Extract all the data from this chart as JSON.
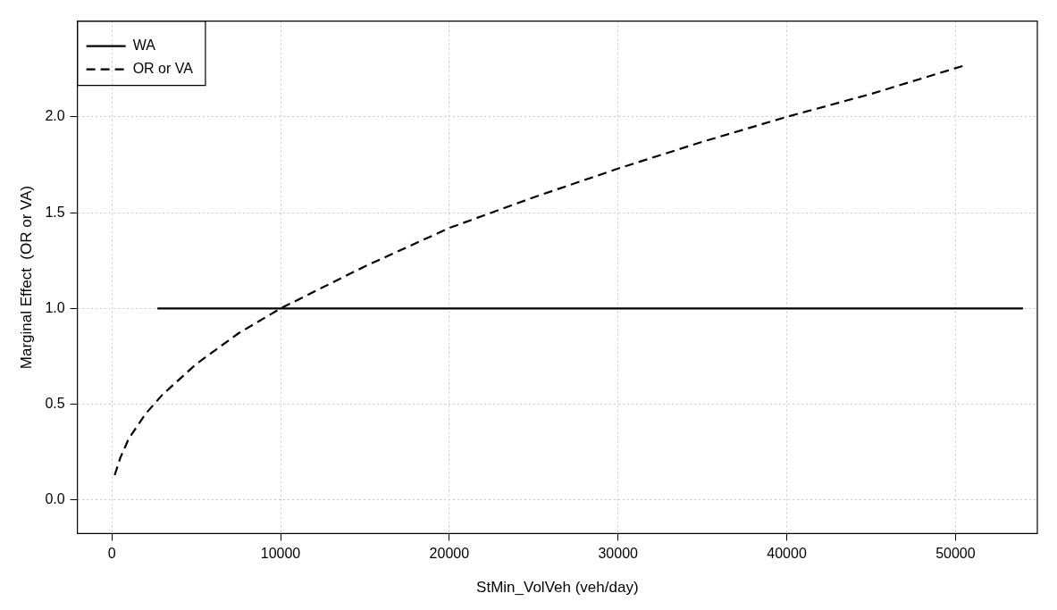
{
  "chart_data": {
    "type": "line",
    "xlabel": "StMin_VolVeh (veh/day)",
    "ylabel": "Marginal Effect  (OR or VA)",
    "xlim": [
      -2040,
      54850
    ],
    "ylim": [
      -0.175,
      2.5
    ],
    "xticks": [
      0,
      10000,
      20000,
      30000,
      40000,
      50000
    ],
    "yticks": [
      {
        "value": 0,
        "label": "0.0"
      },
      {
        "value": 0.5,
        "label": "0.5"
      },
      {
        "value": 1,
        "label": "1.0"
      },
      {
        "value": 1.5,
        "label": "1.5"
      },
      {
        "value": 2,
        "label": "2.0"
      }
    ],
    "grid": true,
    "legend": "top left",
    "marker": "none",
    "series": [
      {
        "name": "WA",
        "color": "#000000",
        "line_style": "solid",
        "x": [
          2700,
          54000
        ],
        "values": [
          1.0,
          1.0
        ]
      },
      {
        "name": "OR or VA",
        "color": "#000000",
        "line_style": "dashed",
        "x": [
          170,
          500,
          1000,
          2000,
          3000,
          5000,
          7500,
          10000,
          15000,
          20000,
          25000,
          30000,
          35000,
          40000,
          45000,
          50600
        ],
        "values": [
          0.13,
          0.22,
          0.32,
          0.45,
          0.55,
          0.71,
          0.87,
          1.0,
          1.22,
          1.42,
          1.58,
          1.73,
          1.87,
          2.0,
          2.12,
          2.27
        ]
      }
    ]
  }
}
